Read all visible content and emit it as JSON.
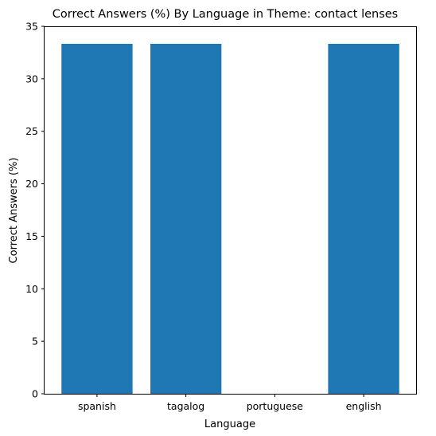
{
  "chart_data": {
    "type": "bar",
    "title": "Correct Answers (%) By Language in Theme: contact lenses",
    "xlabel": "Language",
    "ylabel": "Correct Answers (%)",
    "categories": [
      "spanish",
      "tagalog",
      "portuguese",
      "english"
    ],
    "values": [
      33.33,
      33.33,
      0,
      33.33
    ],
    "ylim": [
      0,
      35
    ],
    "yticks": [
      0,
      5,
      10,
      15,
      20,
      25,
      30,
      35
    ],
    "bar_color": "#1f77b4",
    "grid": false,
    "legend": "none"
  }
}
